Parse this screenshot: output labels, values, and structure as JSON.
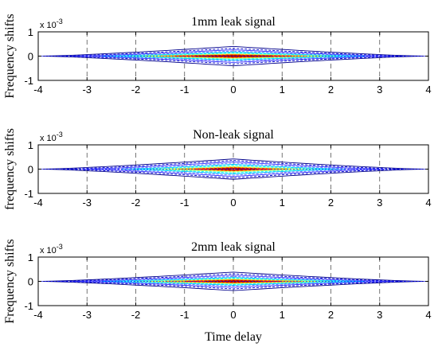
{
  "chart_data": {
    "type": "contour",
    "xlabel": "Time delay",
    "scale_note": "x 10",
    "scale_exponent": "-3",
    "colormap": [
      "#00008b",
      "#0000cd",
      "#3a3aff",
      "#6a6aff",
      "#00bfff",
      "#00ffff",
      "#7fffaa",
      "#ffff00",
      "#ff9900",
      "#ff0000",
      "#a00000"
    ],
    "panels": [
      {
        "title": "1mm leak signal",
        "ylabel": "Frequency shifts",
        "xlim": [
          -4,
          4
        ],
        "ylim": [
          -1,
          1
        ],
        "xticks": [
          "-4",
          "-3",
          "-2",
          "-1",
          "0",
          "1",
          "2",
          "3",
          "4"
        ],
        "yticks": [
          "1",
          "0",
          "-1"
        ],
        "contour_levels": [
          {
            "x_extent": 3.9,
            "y_extent": 0.4
          },
          {
            "x_extent": 3.6,
            "y_extent": 0.32
          },
          {
            "x_extent": 3.3,
            "y_extent": 0.26
          },
          {
            "x_extent": 3.0,
            "y_extent": 0.21
          },
          {
            "x_extent": 2.7,
            "y_extent": 0.17
          },
          {
            "x_extent": 2.4,
            "y_extent": 0.14
          },
          {
            "x_extent": 2.1,
            "y_extent": 0.11
          },
          {
            "x_extent": 1.8,
            "y_extent": 0.08
          },
          {
            "x_extent": 1.5,
            "y_extent": 0.06
          },
          {
            "x_extent": 1.2,
            "y_extent": 0.04
          },
          {
            "x_extent": 0.8,
            "y_extent": 0.02
          }
        ]
      },
      {
        "title": "Non-leak signal",
        "ylabel": "frequency shifts",
        "xlim": [
          -4,
          4
        ],
        "ylim": [
          -1,
          1
        ],
        "xticks": [
          "-4",
          "-3",
          "-2",
          "-1",
          "0",
          "1",
          "2",
          "3",
          "4"
        ],
        "yticks": [
          "1",
          "0",
          "-1"
        ],
        "contour_levels": [
          {
            "x_extent": 3.9,
            "y_extent": 0.42
          },
          {
            "x_extent": 3.5,
            "y_extent": 0.36
          },
          {
            "x_extent": 3.1,
            "y_extent": 0.3
          },
          {
            "x_extent": 2.7,
            "y_extent": 0.25
          },
          {
            "x_extent": 2.3,
            "y_extent": 0.2
          },
          {
            "x_extent": 2.0,
            "y_extent": 0.16
          },
          {
            "x_extent": 1.7,
            "y_extent": 0.12
          },
          {
            "x_extent": 1.4,
            "y_extent": 0.09
          },
          {
            "x_extent": 1.1,
            "y_extent": 0.07
          },
          {
            "x_extent": 0.8,
            "y_extent": 0.05
          },
          {
            "x_extent": 0.5,
            "y_extent": 0.03
          }
        ]
      },
      {
        "title": "2mm leak signal",
        "ylabel": "Frequency shifts",
        "xlim": [
          -4,
          4
        ],
        "ylim": [
          -1,
          1
        ],
        "xticks": [
          "-4",
          "-3",
          "-2",
          "-1",
          "0",
          "1",
          "2",
          "3",
          "4"
        ],
        "yticks": [
          "1",
          "0",
          "-1"
        ],
        "contour_levels": [
          {
            "x_extent": 3.9,
            "y_extent": 0.38
          },
          {
            "x_extent": 3.6,
            "y_extent": 0.31
          },
          {
            "x_extent": 3.3,
            "y_extent": 0.25
          },
          {
            "x_extent": 3.0,
            "y_extent": 0.2
          },
          {
            "x_extent": 2.7,
            "y_extent": 0.16
          },
          {
            "x_extent": 2.3,
            "y_extent": 0.13
          },
          {
            "x_extent": 2.0,
            "y_extent": 0.1
          },
          {
            "x_extent": 1.7,
            "y_extent": 0.08
          },
          {
            "x_extent": 1.4,
            "y_extent": 0.06
          },
          {
            "x_extent": 1.0,
            "y_extent": 0.04
          },
          {
            "x_extent": 0.6,
            "y_extent": 0.02
          }
        ]
      }
    ]
  }
}
